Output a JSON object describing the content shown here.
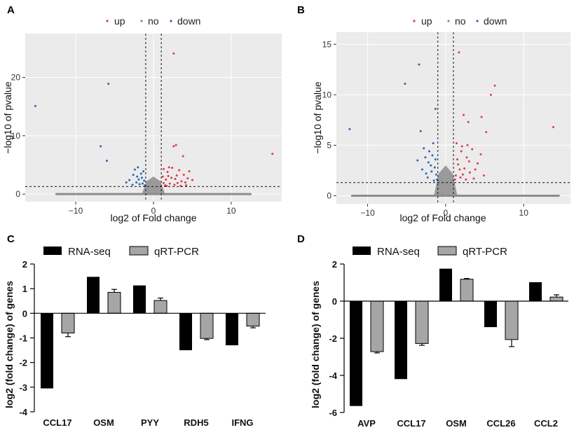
{
  "panels": {
    "A": "A",
    "B": "B",
    "C": "C",
    "D": "D"
  },
  "colors": {
    "up": "#e03a4a",
    "no": "#8c8c8c",
    "down": "#2a66b5",
    "rna": "#000000",
    "qpcr": "#a6a6a6",
    "panel_bg": "#ebebeb"
  },
  "chart_data": [
    {
      "id": "A",
      "type": "scatter",
      "title": "",
      "xlabel": "log2 of Fold change",
      "ylabel": "−log10 of pvalue",
      "xlim": [
        -16.5,
        16.5
      ],
      "ylim": [
        -1.3,
        27.5
      ],
      "xticks": [
        -10,
        0,
        10
      ],
      "yticks": [
        0,
        10,
        20
      ],
      "vlines": [
        -1,
        1
      ],
      "hline": 1.3,
      "legend": {
        "position": "top",
        "entries": [
          "up",
          "no",
          "down"
        ]
      },
      "no_band": {
        "xrange": [
          -12.5,
          12.5
        ],
        "y": 0
      },
      "series": [
        {
          "name": "up",
          "points": [
            [
              2.6,
              24.1
            ],
            [
              2.9,
              8.4
            ],
            [
              2.6,
              8.2
            ],
            [
              3.8,
              6.5
            ],
            [
              15.3,
              6.9
            ],
            [
              1.3,
              4.3
            ],
            [
              1.8,
              3.8
            ],
            [
              2.4,
              4.5
            ],
            [
              3.0,
              3.2
            ],
            [
              3.6,
              2.2
            ],
            [
              4.1,
              2.0
            ],
            [
              4.6,
              3.9
            ],
            [
              1.6,
              2.5
            ],
            [
              2.1,
              1.8
            ],
            [
              1.3,
              1.9
            ],
            [
              2.8,
              2.6
            ],
            [
              3.3,
              4.1
            ],
            [
              4.4,
              2.7
            ],
            [
              5.0,
              2.4
            ],
            [
              1.9,
              3.1
            ],
            [
              2.3,
              2.8
            ],
            [
              3.9,
              3.3
            ],
            [
              1.5,
              1.5
            ],
            [
              2.7,
              1.6
            ],
            [
              3.1,
              1.9
            ],
            [
              4.2,
              1.5
            ],
            [
              1.2,
              3.0
            ],
            [
              2.0,
              4.6
            ],
            [
              3.5,
              1.4
            ],
            [
              1.7,
              1.4
            ]
          ]
        },
        {
          "name": "down",
          "points": [
            [
              -15.2,
              15.1
            ],
            [
              -5.8,
              18.9
            ],
            [
              -6.8,
              8.2
            ],
            [
              -6.0,
              5.7
            ],
            [
              -1.3,
              3.9
            ],
            [
              -2.0,
              4.6
            ],
            [
              -2.6,
              3.3
            ],
            [
              -1.5,
              2.8
            ],
            [
              -2.2,
              2.0
            ],
            [
              -1.8,
              1.7
            ],
            [
              -3.1,
              2.4
            ],
            [
              -1.2,
              2.3
            ],
            [
              -2.7,
              1.6
            ],
            [
              -1.6,
              3.5
            ],
            [
              -1.1,
              1.5
            ],
            [
              -2.4,
              4.2
            ],
            [
              -1.9,
              2.5
            ],
            [
              -3.5,
              2.0
            ],
            [
              -1.4,
              1.8
            ],
            [
              -2.1,
              3.0
            ]
          ]
        }
      ]
    },
    {
      "id": "B",
      "type": "scatter",
      "title": "",
      "xlabel": "log2 of Fold change",
      "ylabel": "−log10 of pvalue",
      "xlim": [
        -14,
        16
      ],
      "ylim": [
        -0.8,
        16.2
      ],
      "xticks": [
        -10,
        0,
        10
      ],
      "yticks": [
        0,
        5,
        10,
        15
      ],
      "vlines": [
        -1,
        1
      ],
      "hline": 1.3,
      "legend": {
        "position": "top",
        "entries": [
          "up",
          "no",
          "down"
        ]
      },
      "no_band": {
        "xrange": [
          -12,
          14.5
        ],
        "y": 0
      },
      "series": [
        {
          "name": "up",
          "points": [
            [
              1.7,
              14.2
            ],
            [
              6.3,
              10.9
            ],
            [
              5.8,
              10.0
            ],
            [
              2.3,
              8.0
            ],
            [
              2.9,
              7.3
            ],
            [
              4.6,
              7.8
            ],
            [
              5.2,
              6.3
            ],
            [
              13.8,
              6.8
            ],
            [
              1.4,
              5.2
            ],
            [
              2.0,
              4.4
            ],
            [
              2.7,
              3.8
            ],
            [
              3.4,
              4.6
            ],
            [
              4.1,
              3.2
            ],
            [
              1.6,
              3.1
            ],
            [
              2.4,
              2.7
            ],
            [
              3.1,
              2.3
            ],
            [
              1.3,
              2.0
            ],
            [
              1.9,
              1.8
            ],
            [
              2.6,
              1.6
            ],
            [
              3.8,
              2.6
            ],
            [
              4.5,
              4.1
            ],
            [
              1.5,
              3.6
            ],
            [
              2.2,
              2.1
            ],
            [
              3.0,
              3.4
            ],
            [
              1.2,
              1.6
            ],
            [
              2.8,
              5.0
            ],
            [
              1.8,
              2.6
            ],
            [
              4.9,
              2.0
            ],
            [
              2.1,
              4.9
            ],
            [
              3.6,
              1.7
            ]
          ]
        },
        {
          "name": "down",
          "points": [
            [
              -12.3,
              6.6
            ],
            [
              -5.2,
              11.1
            ],
            [
              -3.4,
              13.0
            ],
            [
              -1.3,
              8.6
            ],
            [
              -3.2,
              6.4
            ],
            [
              -1.6,
              5.2
            ],
            [
              -2.1,
              4.4
            ],
            [
              -1.3,
              3.6
            ],
            [
              -2.6,
              3.8
            ],
            [
              -1.8,
              2.4
            ],
            [
              -1.2,
              2.1
            ],
            [
              -2.3,
              1.8
            ],
            [
              -1.5,
              1.5
            ],
            [
              -3.0,
              2.6
            ],
            [
              -1.9,
              3.0
            ],
            [
              -2.8,
              4.7
            ],
            [
              -1.4,
              2.8
            ],
            [
              -2.2,
              3.3
            ],
            [
              -3.6,
              3.5
            ],
            [
              -1.1,
              1.6
            ],
            [
              -1.7,
              4.0
            ],
            [
              -2.5,
              2.2
            ]
          ]
        }
      ]
    },
    {
      "id": "C",
      "type": "bar",
      "title": "",
      "xlabel": "",
      "ylabel": "log2 (fold change) of genes",
      "ylim": [
        -4,
        2
      ],
      "yticks": [
        -4,
        -3,
        -2,
        -1,
        0,
        1,
        2
      ],
      "categories": [
        "CCL17",
        "OSM",
        "PYY",
        "RDH5",
        "IFNG"
      ],
      "legend": {
        "position": "top",
        "entries": [
          "RNA-seq",
          "qRT-PCR"
        ]
      },
      "series": [
        {
          "name": "RNA-seq",
          "values": [
            -3.05,
            1.48,
            1.13,
            -1.5,
            -1.3
          ]
        },
        {
          "name": "qRT-PCR",
          "values": [
            -0.8,
            0.85,
            0.52,
            -1.02,
            -0.52
          ],
          "errors": [
            0.15,
            0.12,
            0.1,
            0.05,
            0.07
          ]
        }
      ]
    },
    {
      "id": "D",
      "type": "bar",
      "title": "",
      "xlabel": "",
      "ylabel": "log2 (fold change) of genes",
      "ylim": [
        -6,
        2
      ],
      "yticks": [
        -6,
        -4,
        -2,
        0,
        2
      ],
      "categories": [
        "AVP",
        "CCL17",
        "OSM",
        "CCL26",
        "CCL2"
      ],
      "legend": {
        "position": "top",
        "entries": [
          "RNA-seq",
          "qRT-PCR"
        ]
      },
      "series": [
        {
          "name": "RNA-seq",
          "values": [
            -5.65,
            -4.2,
            1.75,
            -1.4,
            1.02
          ]
        },
        {
          "name": "qRT-PCR",
          "values": [
            -2.72,
            -2.28,
            1.18,
            -2.07,
            0.22
          ],
          "errors": [
            0.07,
            0.1,
            0.04,
            0.38,
            0.12
          ]
        }
      ]
    }
  ]
}
